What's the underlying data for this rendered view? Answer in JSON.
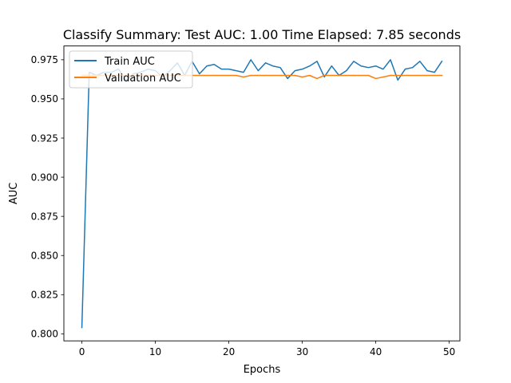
{
  "chart_data": {
    "type": "line",
    "title": "Classify Summary: Test AUC: 1.00 Time Elapsed: 7.85 seconds",
    "xlabel": "Epochs",
    "ylabel": "AUC",
    "xlim": [
      -2.45,
      51.45
    ],
    "ylim": [
      0.7955,
      0.9838
    ],
    "xticks": [
      0,
      10,
      20,
      30,
      40,
      50
    ],
    "xtick_labels": [
      "0",
      "10",
      "20",
      "30",
      "40",
      "50"
    ],
    "yticks": [
      0.8,
      0.825,
      0.85,
      0.875,
      0.9,
      0.925,
      0.95,
      0.975
    ],
    "ytick_labels": [
      "0.800",
      "0.825",
      "0.850",
      "0.875",
      "0.900",
      "0.925",
      "0.950",
      "0.975"
    ],
    "grid": false,
    "legend_position": "upper left",
    "series": [
      {
        "name": "Train AUC",
        "color": "#1f77b4",
        "x": [
          0,
          1,
          2,
          3,
          4,
          5,
          6,
          7,
          8,
          9,
          10,
          11,
          12,
          13,
          14,
          15,
          16,
          17,
          18,
          19,
          20,
          21,
          22,
          23,
          24,
          25,
          26,
          27,
          28,
          29,
          30,
          31,
          32,
          33,
          34,
          35,
          36,
          37,
          38,
          39,
          40,
          41,
          42,
          43,
          44,
          45,
          46,
          47,
          48,
          49
        ],
        "values": [
          0.804,
          0.967,
          0.965,
          0.967,
          0.967,
          0.969,
          0.962,
          0.966,
          0.967,
          0.969,
          0.968,
          0.964,
          0.968,
          0.973,
          0.965,
          0.974,
          0.966,
          0.971,
          0.972,
          0.969,
          0.969,
          0.968,
          0.967,
          0.975,
          0.968,
          0.973,
          0.971,
          0.97,
          0.963,
          0.968,
          0.969,
          0.971,
          0.974,
          0.964,
          0.971,
          0.965,
          0.968,
          0.974,
          0.971,
          0.97,
          0.971,
          0.969,
          0.975,
          0.962,
          0.969,
          0.97,
          0.974,
          0.968,
          0.967,
          0.974
        ]
      },
      {
        "name": "Validation AUC",
        "color": "#ff7f0e",
        "x": [
          0,
          1,
          2,
          3,
          4,
          5,
          6,
          7,
          8,
          9,
          10,
          11,
          12,
          13,
          14,
          15,
          16,
          17,
          18,
          19,
          20,
          21,
          22,
          23,
          24,
          25,
          26,
          27,
          28,
          29,
          30,
          31,
          32,
          33,
          34,
          35,
          36,
          37,
          38,
          39,
          40,
          41,
          42,
          43,
          44,
          45,
          46,
          47,
          48,
          49
        ],
        "values": [
          0.965,
          0.965,
          0.965,
          0.965,
          0.965,
          0.965,
          0.965,
          0.965,
          0.965,
          0.965,
          0.965,
          0.965,
          0.965,
          0.965,
          0.965,
          0.965,
          0.965,
          0.965,
          0.965,
          0.965,
          0.965,
          0.965,
          0.964,
          0.965,
          0.965,
          0.965,
          0.965,
          0.965,
          0.965,
          0.965,
          0.964,
          0.965,
          0.963,
          0.965,
          0.965,
          0.965,
          0.965,
          0.965,
          0.965,
          0.965,
          0.963,
          0.964,
          0.965,
          0.965,
          0.965,
          0.965,
          0.965,
          0.965,
          0.965,
          0.965
        ]
      }
    ]
  }
}
